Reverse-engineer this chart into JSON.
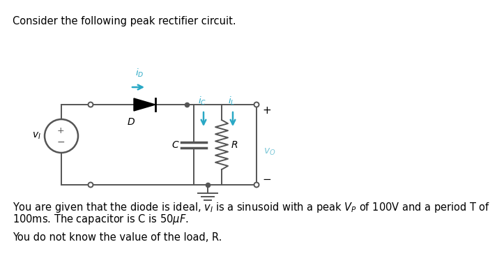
{
  "title_text": "Consider the following peak rectifier circuit.",
  "body_text_1": "You are given that the diode is ideal, $v_I$ is a sinusoid with a peak $V_P$ of 100V and a period T of\n100ms. The capacitor is C is $50\\mu F$.",
  "body_text_2": "You do not know the value of the load, R.",
  "bg_color": "#ffffff",
  "text_color": "#000000",
  "circuit_color": "#555555",
  "cyan_color": "#29a8c5",
  "vo_color": "#7ec8d8",
  "title_fontsize": 10.5,
  "body_fontsize": 10.5,
  "circuit_lw": 1.4
}
